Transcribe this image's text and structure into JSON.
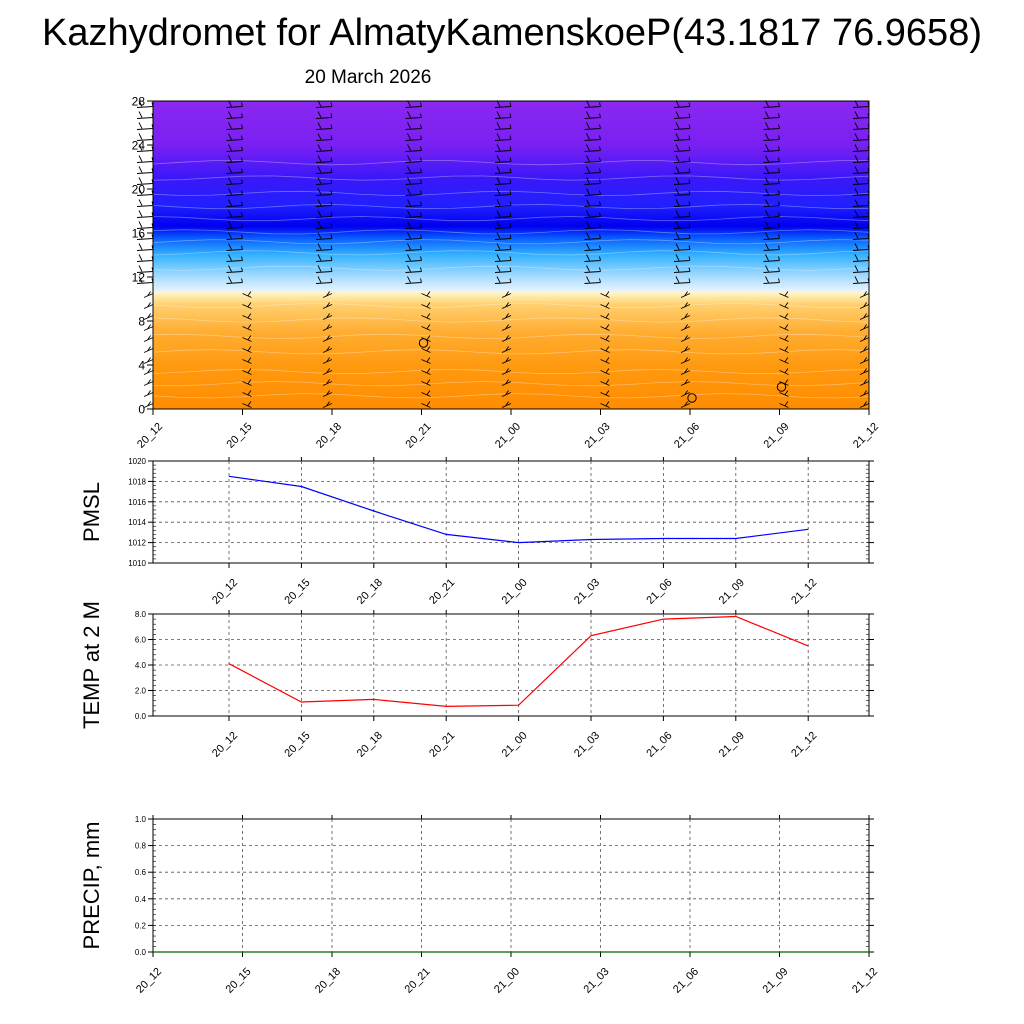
{
  "title": "Kazhydromet for AlmatyKamenskoeP(43.1817 76.9658)",
  "subtitle": "20 March 2026",
  "colors": {
    "wind_barb": "#000000",
    "pmsl_line": "#0000ff",
    "temp_line": "#ff0000",
    "precip_line": "#006400",
    "grid": "#555555"
  },
  "chart_data": [
    {
      "type": "heatmap",
      "name": "vertical-profile",
      "title": "",
      "xlabel": "",
      "ylabel": "",
      "x_tick_labels": [
        "20_12",
        "20_15",
        "20_18",
        "20_21",
        "21_00",
        "21_03",
        "21_06",
        "21_09",
        "21_12"
      ],
      "y_ticks": [
        0,
        4,
        8,
        12,
        16,
        20,
        24,
        28
      ],
      "ylim": [
        0,
        28
      ],
      "color_bands": [
        {
          "z": 0,
          "color": "#ff8c00"
        },
        {
          "z": 4,
          "color": "#ff9a10"
        },
        {
          "z": 7,
          "color": "#ffad32"
        },
        {
          "z": 9.5,
          "color": "#ffd070"
        },
        {
          "z": 10.6,
          "color": "#fff7c8"
        },
        {
          "z": 10.7,
          "color": "#e8f4ff"
        },
        {
          "z": 12,
          "color": "#a8dcff"
        },
        {
          "z": 14,
          "color": "#34b2ff"
        },
        {
          "z": 15.5,
          "color": "#0a60ff"
        },
        {
          "z": 16.6,
          "color": "#0000f0"
        },
        {
          "z": 18.5,
          "color": "#2020ff"
        },
        {
          "z": 21,
          "color": "#3a18f8"
        },
        {
          "z": 24,
          "color": "#7a20f2"
        },
        {
          "z": 28,
          "color": "#8a28f0"
        }
      ],
      "station_circles": [
        {
          "time": "20_21",
          "z": 6
        },
        {
          "time": "21_06",
          "z": 1
        },
        {
          "time": "21_09",
          "z": 2
        }
      ]
    },
    {
      "type": "line",
      "name": "pmsl",
      "ylabel": "PMSL",
      "x_tick_labels": [
        "20_12",
        "20_15",
        "20_18",
        "20_21",
        "21_00",
        "21_03",
        "21_06",
        "21_09",
        "21_12"
      ],
      "y_ticks": [
        1010,
        1012,
        1014,
        1016,
        1018,
        1020
      ],
      "y_tick_labels": [
        "1010",
        "1012",
        "1014",
        "1016",
        "1018",
        "1020"
      ],
      "ylim": [
        1010,
        1020
      ],
      "grid": true,
      "series": [
        {
          "values": [
            1018.5,
            1017.5,
            1015.1,
            1012.8,
            1012.0,
            1012.3,
            1012.4,
            1012.4,
            1013.3
          ]
        }
      ]
    },
    {
      "type": "line",
      "name": "temp-2m",
      "ylabel": "TEMP at 2 M",
      "x_tick_labels": [
        "20_12",
        "20_15",
        "20_18",
        "20_21",
        "21_00",
        "21_03",
        "21_06",
        "21_09",
        "21_12"
      ],
      "y_ticks": [
        0,
        2,
        4,
        6,
        8
      ],
      "y_tick_labels": [
        "0.0",
        "2.0",
        "4.0",
        "6.0",
        "8.0"
      ],
      "ylim": [
        0,
        8
      ],
      "grid": true,
      "series": [
        {
          "values": [
            4.1,
            1.1,
            1.3,
            0.75,
            0.85,
            6.3,
            7.6,
            7.8,
            5.5
          ]
        }
      ]
    },
    {
      "type": "line",
      "name": "precip",
      "ylabel": "PRECIP, mm",
      "x_tick_labels": [
        "20_12",
        "20_15",
        "20_18",
        "20_21",
        "21_00",
        "21_03",
        "21_06",
        "21_09",
        "21_12"
      ],
      "y_ticks": [
        0,
        0.2,
        0.4,
        0.6,
        0.8,
        1.0
      ],
      "y_tick_labels": [
        "0.0",
        "0.2",
        "0.4",
        "0.6",
        "0.8",
        "1.0"
      ],
      "ylim": [
        0,
        1
      ],
      "grid": true,
      "series": [
        {
          "values": [
            0,
            0,
            0,
            0,
            0,
            0,
            0,
            0,
            0
          ]
        }
      ]
    }
  ]
}
